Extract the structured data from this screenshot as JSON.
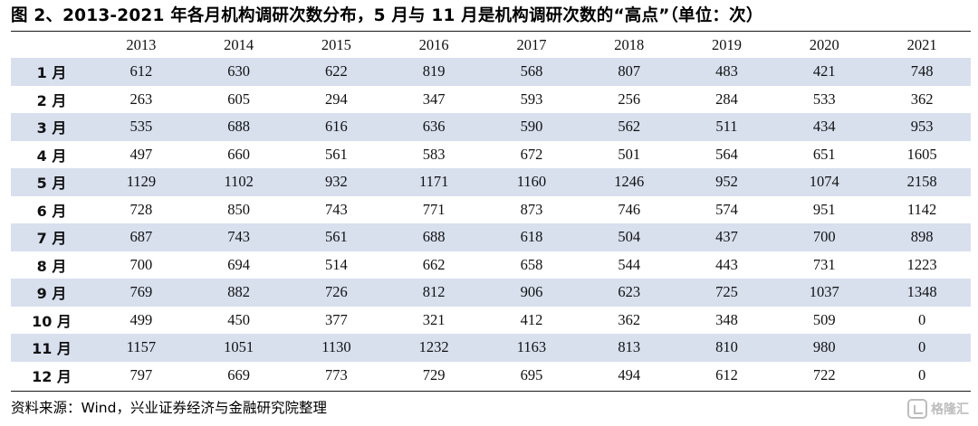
{
  "title": "图 2、2013-2021 年各月机构调研次数分布，5 月与 11 月是机构调研次数的“高点”（单位：次）",
  "table": {
    "columns": [
      "2013",
      "2014",
      "2015",
      "2016",
      "2017",
      "2018",
      "2019",
      "2020",
      "2021"
    ],
    "rows": [
      {
        "label": "1 月",
        "values": [
          "612",
          "630",
          "622",
          "819",
          "568",
          "807",
          "483",
          "421",
          "748"
        ]
      },
      {
        "label": "2 月",
        "values": [
          "263",
          "605",
          "294",
          "347",
          "593",
          "256",
          "284",
          "533",
          "362"
        ]
      },
      {
        "label": "3 月",
        "values": [
          "535",
          "688",
          "616",
          "636",
          "590",
          "562",
          "511",
          "434",
          "953"
        ]
      },
      {
        "label": "4 月",
        "values": [
          "497",
          "660",
          "561",
          "583",
          "672",
          "501",
          "564",
          "651",
          "1605"
        ]
      },
      {
        "label": "5 月",
        "values": [
          "1129",
          "1102",
          "932",
          "1171",
          "1160",
          "1246",
          "952",
          "1074",
          "2158"
        ]
      },
      {
        "label": "6 月",
        "values": [
          "728",
          "850",
          "743",
          "771",
          "873",
          "746",
          "574",
          "951",
          "1142"
        ]
      },
      {
        "label": "7 月",
        "values": [
          "687",
          "743",
          "561",
          "688",
          "618",
          "504",
          "437",
          "700",
          "898"
        ]
      },
      {
        "label": "8 月",
        "values": [
          "700",
          "694",
          "514",
          "662",
          "658",
          "544",
          "443",
          "731",
          "1223"
        ]
      },
      {
        "label": "9 月",
        "values": [
          "769",
          "882",
          "726",
          "812",
          "906",
          "623",
          "725",
          "1037",
          "1348"
        ]
      },
      {
        "label": "10 月",
        "values": [
          "499",
          "450",
          "377",
          "321",
          "412",
          "362",
          "348",
          "509",
          "0"
        ]
      },
      {
        "label": "11 月",
        "values": [
          "1157",
          "1051",
          "1130",
          "1232",
          "1163",
          "813",
          "810",
          "980",
          "0"
        ]
      },
      {
        "label": "12 月",
        "values": [
          "797",
          "669",
          "773",
          "729",
          "695",
          "494",
          "612",
          "722",
          "0"
        ]
      }
    ]
  },
  "source": "资料来源：Wind，兴业证券经济与金融研究院整理",
  "watermark": {
    "text": "格隆汇",
    "icon": "gelonghui-logo-icon"
  },
  "colors": {
    "band": "#d8e0ee",
    "rule": "#1a1a1a"
  }
}
